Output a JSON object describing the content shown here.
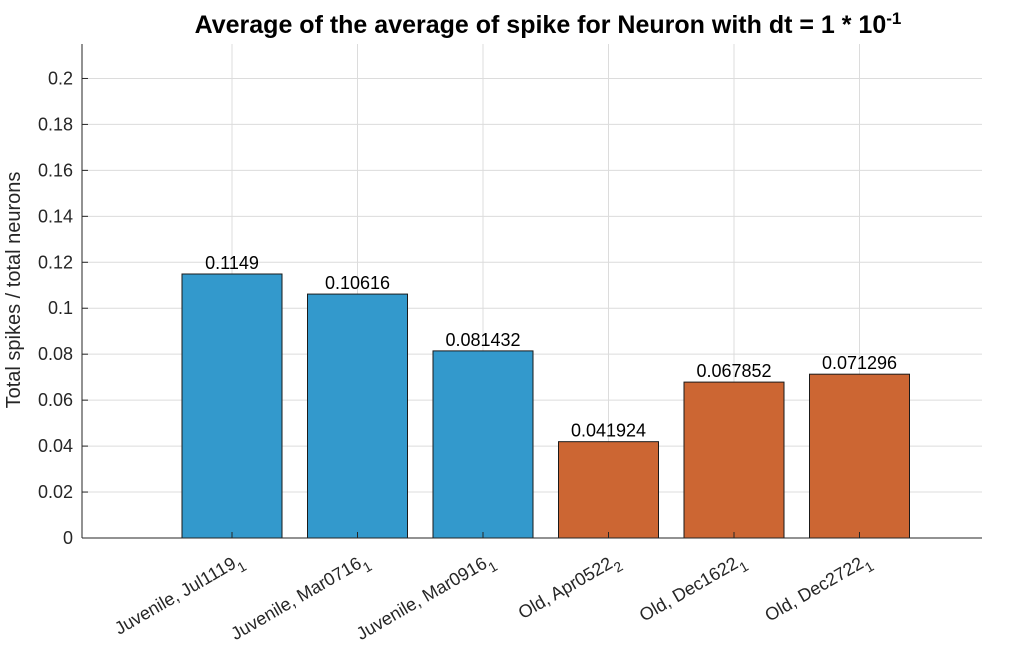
{
  "chart_data": {
    "type": "bar",
    "title": "Average of the average of spike for Neuron with dt = 1 * 10",
    "title_exponent": "-1",
    "xlabel": "",
    "ylabel": "Total spikes / total neurons",
    "ylim": [
      0,
      0.215
    ],
    "yticks": [
      0,
      0.02,
      0.04,
      0.06,
      0.08,
      0.1,
      0.12,
      0.14,
      0.16,
      0.18,
      0.2
    ],
    "ytick_labels": [
      "0",
      "0.02",
      "0.04",
      "0.06",
      "0.08",
      "0.1",
      "0.12",
      "0.14",
      "0.16",
      "0.18",
      "0.2"
    ],
    "grid": true,
    "categories": [
      {
        "main": "Juvenile, Jul1119",
        "sub": "1"
      },
      {
        "main": "Juvenile, Mar0716",
        "sub": "1"
      },
      {
        "main": "Juvenile, Mar0916",
        "sub": "1"
      },
      {
        "main": "Old, Apr0522",
        "sub": "2"
      },
      {
        "main": "Old, Dec1622",
        "sub": "1"
      },
      {
        "main": "Old, Dec2722",
        "sub": "1"
      }
    ],
    "values": [
      0.1149,
      0.10616,
      0.081432,
      0.041924,
      0.067852,
      0.071296
    ],
    "value_labels": [
      "0.1149",
      "0.10616",
      "0.081432",
      "0.041924",
      "0.067852",
      "0.071296"
    ],
    "bar_colors": [
      "#3399cc",
      "#3399cc",
      "#3399cc",
      "#cc6633",
      "#cc6633",
      "#cc6633"
    ]
  }
}
